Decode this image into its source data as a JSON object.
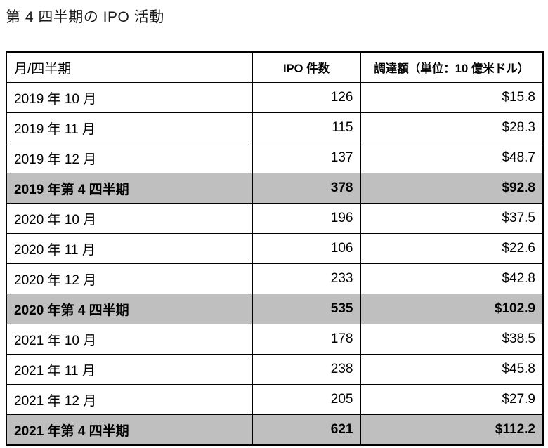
{
  "page": {
    "title": "第 4 四半期の IPO 活動"
  },
  "table": {
    "columns": {
      "period": "月/四半期",
      "ipo_count": "IPO 件数",
      "raised": "調達額（単位：10 億米ドル）"
    },
    "rows": [
      {
        "period": "2019 年 10 月",
        "ipo_count": "126",
        "raised": "$15.8",
        "summary": false
      },
      {
        "period": "2019 年 11 月",
        "ipo_count": "115",
        "raised": "$28.3",
        "summary": false
      },
      {
        "period": "2019 年 12 月",
        "ipo_count": "137",
        "raised": "$48.7",
        "summary": false
      },
      {
        "period": "2019 年第 4 四半期",
        "ipo_count": "378",
        "raised": "$92.8",
        "summary": true
      },
      {
        "period": "2020 年 10 月",
        "ipo_count": "196",
        "raised": "$37.5",
        "summary": false
      },
      {
        "period": "2020 年 11 月",
        "ipo_count": "106",
        "raised": "$22.6",
        "summary": false
      },
      {
        "period": "2020 年 12 月",
        "ipo_count": "233",
        "raised": "$42.8",
        "summary": false
      },
      {
        "period": "2020 年第 4 四半期",
        "ipo_count": "535",
        "raised": "$102.9",
        "summary": true
      },
      {
        "period": "2021 年 10 月",
        "ipo_count": "178",
        "raised": "$38.5",
        "summary": false
      },
      {
        "period": "2021 年 11 月",
        "ipo_count": "238",
        "raised": "$45.8",
        "summary": false
      },
      {
        "period": "2021 年 12 月",
        "ipo_count": "205",
        "raised": "$27.9",
        "summary": false
      },
      {
        "period": "2021 年第 4 四半期",
        "ipo_count": "621",
        "raised": "$112.2",
        "summary": true
      }
    ],
    "colors": {
      "summary_row_bg": "#bfbfbf",
      "border": "#000000",
      "text": "#000000",
      "background": "#ffffff"
    }
  }
}
